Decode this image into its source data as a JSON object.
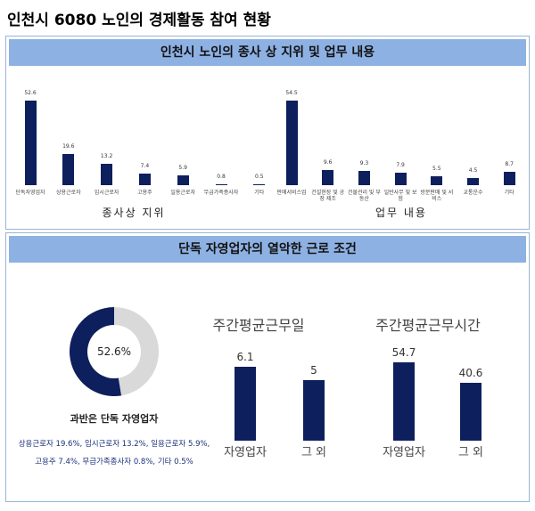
{
  "title": "인천시 6080 노인의 경제활동 참여 현황",
  "sections": [
    "인천시 노인의 종사 상 지위 및 업무 내용",
    "단독 자영업자의 열악한 근로 조건"
  ],
  "chart_data": [
    {
      "type": "bar",
      "xlabel": "종사상 지위",
      "color": "#0d1f5c",
      "categories": [
        "단독자영업자",
        "상용근로자",
        "임시근로자",
        "고용주",
        "일용근로자",
        "무급가족종사자",
        "기타"
      ],
      "values": [
        52.6,
        19.6,
        13.2,
        7.4,
        5.9,
        0.8,
        0.5
      ]
    },
    {
      "type": "bar",
      "xlabel": "업무 내용",
      "color": "#0d1f5c",
      "categories": [
        "판매서비스업",
        "건설현장 및 공장 제조",
        "건물관리 및 부동산",
        "일반사무 및 보험",
        "방문판매 및 서비스",
        "교통운수",
        "기타"
      ],
      "values": [
        54.5,
        9.6,
        9.3,
        7.9,
        5.5,
        4.5,
        8.7
      ]
    },
    {
      "type": "donut",
      "colors": [
        "#0d1f5c",
        "#d9d9d9"
      ],
      "values": [
        52.6,
        47.4
      ],
      "value_labels": [
        "52.6%",
        null
      ],
      "caption": "과반은 단독 자영업자",
      "notes": [
        "상용근로자 19.6%, 임시근로자 13.2%, 일용근로자 5.9%,",
        "고용주 7.4%, 무급가족종사자 0.8%, 기타 0.5%"
      ]
    },
    {
      "type": "bar",
      "title": "주간평균근무일",
      "color": "#0d1f5c",
      "categories": [
        "자영업자",
        "그 외"
      ],
      "values": [
        6.1,
        5
      ]
    },
    {
      "type": "bar",
      "title": "주간평균근무시간",
      "color": "#0d1f5c",
      "categories": [
        "자영업자",
        "그 외"
      ],
      "values": [
        54.7,
        40.6
      ]
    }
  ]
}
